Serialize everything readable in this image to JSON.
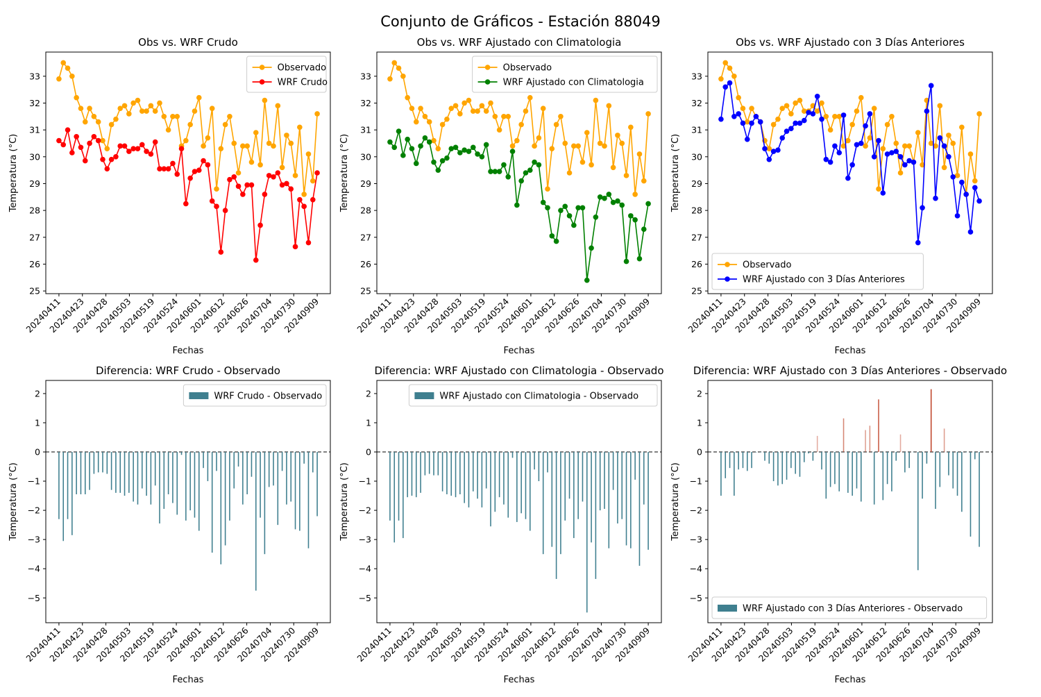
{
  "suptitle": "Conjunto de Gráficos - Estación 88049",
  "colors": {
    "observed": "#ffa500",
    "crudo": "#ff0000",
    "clim": "#008000",
    "dias3": "#0000ff",
    "bar_negative": "#3f7f8f",
    "bar_positive": "#c0462c",
    "bar_legend": "#3f7f8f"
  },
  "chart_data": [
    {
      "type": "line",
      "title": "Obs vs. WRF Crudo",
      "xlabel": "Fechas",
      "ylabel": "Temperatura (°C)",
      "ylim": [
        24.9,
        33.9
      ],
      "yticks": [
        25,
        26,
        27,
        28,
        29,
        30,
        31,
        32,
        33
      ],
      "x_ticks": [
        "20240411",
        "20240423",
        "20240428",
        "20240503",
        "20240519",
        "20240524",
        "20240601",
        "20240612",
        "20240626",
        "20240704",
        "20240730",
        "20240909"
      ],
      "legend_position": "upper right",
      "series": [
        {
          "name": "Observado",
          "color_key": "observed",
          "values": [
            32.9,
            33.5,
            33.3,
            33.0,
            32.2,
            31.8,
            31.3,
            31.8,
            31.5,
            31.3,
            30.6,
            30.3,
            31.2,
            31.4,
            31.8,
            31.9,
            31.6,
            32.0,
            32.1,
            31.7,
            31.7,
            31.9,
            31.7,
            32.0,
            31.5,
            31.0,
            31.5,
            31.5,
            30.4,
            30.6,
            31.2,
            31.7,
            32.2,
            30.4,
            30.7,
            31.8,
            28.8,
            30.3,
            31.2,
            31.5,
            30.5,
            29.4,
            30.4,
            30.4,
            29.8,
            30.9,
            29.7,
            32.1,
            30.5,
            30.4,
            31.9,
            29.6,
            30.8,
            30.5,
            29.3,
            31.1,
            28.6,
            30.1,
            29.1,
            31.6
          ]
        },
        {
          "name": "WRF Crudo",
          "color_key": "crudo",
          "values": [
            30.6,
            30.45,
            31.0,
            30.15,
            30.75,
            30.35,
            29.85,
            30.5,
            30.75,
            30.6,
            29.9,
            29.55,
            29.9,
            30.0,
            30.4,
            30.4,
            30.2,
            30.3,
            30.3,
            30.45,
            30.2,
            30.1,
            30.55,
            29.55,
            29.55,
            29.55,
            29.75,
            29.35,
            30.3,
            28.25,
            29.2,
            29.45,
            29.5,
            29.85,
            29.7,
            28.35,
            28.15,
            26.45,
            28.0,
            29.15,
            29.25,
            28.9,
            28.6,
            28.95,
            28.95,
            26.15,
            27.45,
            28.6,
            29.3,
            29.25,
            29.4,
            28.95,
            29.0,
            28.8,
            26.65,
            28.4,
            28.15,
            26.8,
            28.4,
            29.4
          ]
        }
      ]
    },
    {
      "type": "line",
      "title": "Obs vs. WRF Ajustado con Climatologia",
      "xlabel": "Fechas",
      "ylabel": "Temperatura (°C)",
      "ylim": [
        24.9,
        33.9
      ],
      "yticks": [
        25,
        26,
        27,
        28,
        29,
        30,
        31,
        32,
        33
      ],
      "x_ticks": [
        "20240411",
        "20240423",
        "20240428",
        "20240503",
        "20240519",
        "20240524",
        "20240601",
        "20240612",
        "20240626",
        "20240704",
        "20240730",
        "20240909"
      ],
      "legend_position": "upper right",
      "series": [
        {
          "name": "Observado",
          "color_key": "observed",
          "values": [
            32.9,
            33.5,
            33.3,
            33.0,
            32.2,
            31.8,
            31.3,
            31.8,
            31.5,
            31.3,
            30.6,
            30.3,
            31.2,
            31.4,
            31.8,
            31.9,
            31.6,
            32.0,
            32.1,
            31.7,
            31.7,
            31.9,
            31.7,
            32.0,
            31.5,
            31.0,
            31.5,
            31.5,
            30.4,
            30.6,
            31.2,
            31.7,
            32.2,
            30.4,
            30.7,
            31.8,
            28.8,
            30.3,
            31.2,
            31.5,
            30.5,
            29.4,
            30.4,
            30.4,
            29.8,
            30.9,
            29.7,
            32.1,
            30.5,
            30.4,
            31.9,
            29.6,
            30.8,
            30.5,
            29.3,
            31.1,
            28.6,
            30.1,
            29.1,
            31.6
          ]
        },
        {
          "name": "WRF Ajustado con Climatologia",
          "color_key": "clim",
          "values": [
            30.55,
            30.35,
            30.95,
            30.05,
            30.65,
            30.3,
            29.75,
            30.4,
            30.7,
            30.55,
            29.8,
            29.5,
            29.85,
            29.95,
            30.3,
            30.35,
            30.15,
            30.25,
            30.2,
            30.35,
            30.1,
            30.0,
            30.45,
            29.45,
            29.45,
            29.45,
            29.7,
            29.25,
            30.2,
            28.2,
            29.1,
            29.4,
            29.5,
            29.8,
            29.7,
            28.3,
            28.1,
            27.05,
            26.85,
            28.0,
            28.15,
            27.8,
            27.45,
            28.1,
            28.1,
            25.4,
            26.6,
            27.75,
            28.5,
            28.45,
            28.6,
            28.3,
            28.35,
            28.2,
            26.1,
            27.8,
            27.65,
            26.2,
            27.3,
            28.25
          ]
        }
      ]
    },
    {
      "type": "line",
      "title": "Obs vs. WRF Ajustado con 3 Días Anteriores",
      "xlabel": "Fechas",
      "ylabel": "Temperatura (°C)",
      "ylim": [
        24.9,
        33.9
      ],
      "yticks": [
        25,
        26,
        27,
        28,
        29,
        30,
        31,
        32,
        33
      ],
      "x_ticks": [
        "20240411",
        "20240423",
        "20240428",
        "20240503",
        "20240519",
        "20240524",
        "20240601",
        "20240612",
        "20240626",
        "20240704",
        "20240730",
        "20240909"
      ],
      "legend_position": "lower left",
      "series": [
        {
          "name": "Observado",
          "color_key": "observed",
          "values": [
            32.9,
            33.5,
            33.3,
            33.0,
            32.2,
            31.8,
            31.3,
            31.8,
            31.5,
            31.3,
            30.6,
            30.3,
            31.2,
            31.4,
            31.8,
            31.9,
            31.6,
            32.0,
            32.1,
            31.7,
            31.7,
            31.9,
            31.7,
            32.0,
            31.5,
            31.0,
            31.5,
            31.5,
            30.4,
            30.6,
            31.2,
            31.7,
            32.2,
            30.4,
            30.7,
            31.8,
            28.8,
            30.3,
            31.2,
            31.5,
            30.5,
            29.4,
            30.4,
            30.4,
            29.8,
            30.9,
            29.7,
            32.1,
            30.5,
            30.4,
            31.9,
            29.6,
            30.8,
            30.5,
            29.3,
            31.1,
            28.6,
            30.1,
            29.1,
            31.6
          ]
        },
        {
          "name": "WRF Ajustado con 3 Días Anteriores",
          "color_key": "dias3",
          "values": [
            31.4,
            32.6,
            32.75,
            31.5,
            31.6,
            31.25,
            30.65,
            31.25,
            31.5,
            31.3,
            30.3,
            29.9,
            30.2,
            30.25,
            30.7,
            30.95,
            31.05,
            31.25,
            31.25,
            31.35,
            31.65,
            31.6,
            32.25,
            31.4,
            29.9,
            29.8,
            30.4,
            30.15,
            31.55,
            29.2,
            29.7,
            30.45,
            30.5,
            31.15,
            31.6,
            30.0,
            30.6,
            28.65,
            30.1,
            30.15,
            30.2,
            30.0,
            29.7,
            29.85,
            29.8,
            26.8,
            28.1,
            31.7,
            32.65,
            28.45,
            30.7,
            30.4,
            30.0,
            29.25,
            27.8,
            29.05,
            28.6,
            27.2,
            28.85,
            28.35
          ]
        }
      ]
    },
    {
      "type": "bar",
      "title": "Diferencia: WRF Crudo - Observado",
      "xlabel": "Fechas",
      "ylabel": "Temperatura (°C)",
      "ylim": [
        -5.85,
        2.45
      ],
      "yticks": [
        -5,
        -4,
        -3,
        -2,
        -1,
        0,
        1,
        2
      ],
      "x_ticks": [
        "20240411",
        "20240423",
        "20240428",
        "20240503",
        "20240519",
        "20240524",
        "20240601",
        "20240612",
        "20240626",
        "20240704",
        "20240730",
        "20240909"
      ],
      "legend_position": "upper right",
      "series_name": "WRF Crudo - Observado",
      "values": [
        -2.3,
        -3.05,
        -2.3,
        -2.85,
        -1.45,
        -1.45,
        -1.45,
        -1.3,
        -0.75,
        -0.7,
        -0.7,
        -0.75,
        -1.3,
        -1.4,
        -1.4,
        -1.5,
        -1.4,
        -1.7,
        -1.8,
        -1.25,
        -1.5,
        -1.8,
        -1.15,
        -2.45,
        -1.95,
        -1.45,
        -1.75,
        -2.15,
        -0.1,
        -2.35,
        -2.0,
        -2.25,
        -2.7,
        -0.55,
        -1.0,
        -3.45,
        -0.65,
        -3.85,
        -3.2,
        -2.35,
        -1.25,
        -0.5,
        -1.8,
        -1.45,
        -0.85,
        -4.75,
        -2.25,
        -3.5,
        -1.2,
        -1.15,
        -2.5,
        -0.65,
        -1.8,
        -1.7,
        -2.65,
        -2.7,
        -0.4,
        -3.3,
        -0.7,
        -2.2
      ]
    },
    {
      "type": "bar",
      "title": "Diferencia: WRF Ajustado con Climatologia - Observado",
      "xlabel": "Fechas",
      "ylabel": "Temperatura (°C)",
      "ylim": [
        -5.85,
        2.45
      ],
      "yticks": [
        -5,
        -4,
        -3,
        -2,
        -1,
        0,
        1,
        2
      ],
      "x_ticks": [
        "20240411",
        "20240423",
        "20240428",
        "20240503",
        "20240519",
        "20240524",
        "20240601",
        "20240612",
        "20240626",
        "20240704",
        "20240730",
        "20240909"
      ],
      "legend_position": "upper right",
      "series_name": "WRF Ajustado con Climatologia - Observado",
      "values": [
        -2.35,
        -3.1,
        -2.35,
        -2.95,
        -1.55,
        -1.5,
        -1.55,
        -1.4,
        -0.8,
        -0.75,
        -0.8,
        -0.8,
        -1.35,
        -1.45,
        -1.5,
        -1.55,
        -1.45,
        -1.75,
        -1.9,
        -1.35,
        -1.6,
        -1.9,
        -1.25,
        -2.55,
        -2.05,
        -1.55,
        -1.8,
        -2.25,
        -0.2,
        -2.4,
        -2.1,
        -2.3,
        -2.7,
        -0.6,
        -1.0,
        -3.5,
        -0.7,
        -3.25,
        -4.35,
        -3.5,
        -2.35,
        -1.6,
        -2.95,
        -2.3,
        -1.7,
        -5.5,
        -3.1,
        -4.35,
        -2.0,
        -1.95,
        -3.3,
        -1.3,
        -2.45,
        -2.3,
        -3.2,
        -3.3,
        -0.95,
        -3.9,
        -1.8,
        -3.35
      ]
    },
    {
      "type": "bar",
      "title": "Diferencia: WRF Ajustado con 3 Días Anteriores - Observado",
      "xlabel": "Fechas",
      "ylabel": "Temperatura (°C)",
      "ylim": [
        -5.85,
        2.45
      ],
      "yticks": [
        -5,
        -4,
        -3,
        -2,
        -1,
        0,
        1,
        2
      ],
      "x_ticks": [
        "20240411",
        "20240423",
        "20240428",
        "20240503",
        "20240519",
        "20240524",
        "20240601",
        "20240612",
        "20240626",
        "20240704",
        "20240730",
        "20240909"
      ],
      "legend_position": "lower left",
      "series_name": "WRF Ajustado con 3 Días Anteriores - Observado",
      "values": [
        -1.5,
        -0.9,
        -0.55,
        -1.5,
        -0.6,
        -0.55,
        -0.65,
        -0.55,
        0.0,
        0.0,
        -0.3,
        -0.4,
        -1.0,
        -1.15,
        -1.1,
        -0.95,
        -0.55,
        -0.75,
        -0.85,
        -0.35,
        -0.05,
        -0.3,
        0.55,
        -0.6,
        -1.6,
        -1.2,
        -1.1,
        -1.35,
        1.15,
        -1.4,
        -1.5,
        -1.25,
        -1.7,
        0.75,
        0.9,
        -1.8,
        1.8,
        -1.65,
        -1.1,
        -1.35,
        -0.3,
        0.6,
        -0.7,
        -0.55,
        0.0,
        -4.05,
        -1.6,
        -0.4,
        2.15,
        -1.95,
        -1.2,
        0.8,
        -0.8,
        -1.25,
        -1.5,
        -2.05,
        0.0,
        -2.9,
        -0.25,
        -3.25
      ]
    }
  ]
}
